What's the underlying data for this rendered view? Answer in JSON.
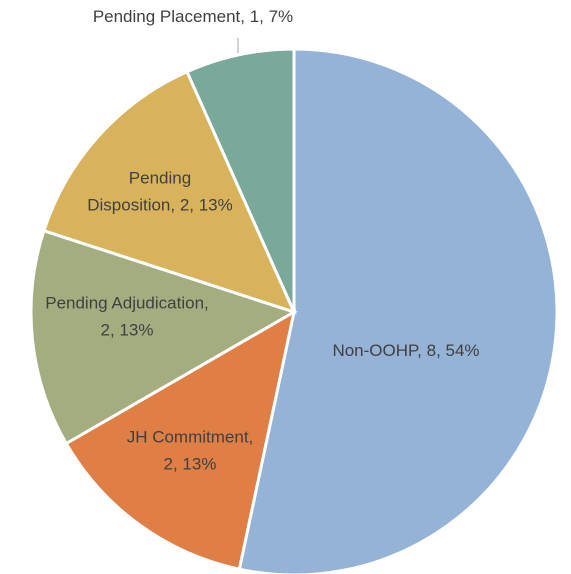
{
  "chart_data": {
    "type": "pie",
    "categories": [
      "Non-OOHP",
      "JH Commitment",
      "Pending Adjudication",
      "Pending Disposition",
      "Pending Placement"
    ],
    "values": [
      8,
      2,
      2,
      2,
      1
    ],
    "value_labels": [
      [
        "Non-OOHP, 8, 54%"
      ],
      [
        "JH Commitment,",
        "2, 13%"
      ],
      [
        "Pending Adjudication,",
        "2, 13%"
      ],
      [
        "Pending",
        "Disposition, 2, 13%"
      ],
      [
        "Pending Placement, 1, 7%"
      ]
    ],
    "colors": [
      "#95b3d7",
      "#df7f45",
      "#a4ad80",
      "#d9b25c",
      "#7aa89a"
    ]
  }
}
